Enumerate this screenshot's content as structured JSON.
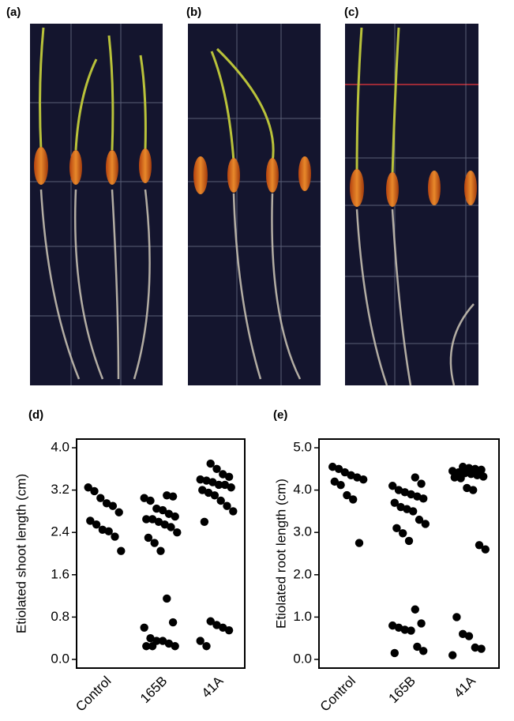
{
  "panels": [
    "(a)",
    "(b)",
    "(c)"
  ],
  "chart_data": [
    {
      "type": "strip",
      "panel_label": "(d)",
      "ylabel": "Etiolated shoot length (cm)",
      "categories": [
        "Control",
        "165B",
        "41A"
      ],
      "color": "#000000",
      "values": [
        [
          3.25,
          3.18,
          3.05,
          2.95,
          2.9,
          2.78,
          2.62,
          2.55,
          2.45,
          2.42,
          2.32,
          2.05
        ],
        [
          3.1,
          3.08,
          3.05,
          3.0,
          2.85,
          2.82,
          2.75,
          2.7,
          2.65,
          2.65,
          2.6,
          2.55,
          2.5,
          2.4,
          2.3,
          2.2,
          2.05,
          1.15,
          0.7,
          0.6,
          0.4,
          0.35,
          0.35,
          0.3,
          0.25,
          0.25,
          0.25
        ],
        [
          3.7,
          3.6,
          3.5,
          3.45,
          3.4,
          3.38,
          3.35,
          3.3,
          3.3,
          3.25,
          3.2,
          3.15,
          3.1,
          3.0,
          2.9,
          2.8,
          2.6,
          0.72,
          0.65,
          0.6,
          0.55,
          0.35,
          0.25
        ]
      ],
      "ylim": [
        0,
        4
      ],
      "yticks": [
        {
          "value": 0,
          "label": "0.0"
        },
        0.8,
        1.6,
        2.4,
        3.2,
        {
          "value": 4,
          "label": "4.0"
        }
      ]
    },
    {
      "type": "strip",
      "panel_label": "(e)",
      "ylabel": "Etiolated root length (cm)",
      "categories": [
        "Control",
        "165B",
        "41A"
      ],
      "color": "#000000",
      "values": [
        [
          4.55,
          4.5,
          4.42,
          4.35,
          4.3,
          4.25,
          4.2,
          4.12,
          3.88,
          3.78,
          2.75
        ],
        [
          4.3,
          4.15,
          4.1,
          4.0,
          3.95,
          3.9,
          3.85,
          3.8,
          3.7,
          3.6,
          3.55,
          3.5,
          3.3,
          3.2,
          3.1,
          2.98,
          2.8,
          1.18,
          0.85,
          0.8,
          0.75,
          0.7,
          0.68,
          0.3,
          0.2,
          0.15
        ],
        [
          4.55,
          4.52,
          4.5,
          4.48,
          4.45,
          4.42,
          4.4,
          4.38,
          4.35,
          4.32,
          4.3,
          4.28,
          4.05,
          4.0,
          2.7,
          2.6,
          1.0,
          0.6,
          0.55,
          0.28,
          0.25,
          0.1
        ]
      ],
      "ylim": [
        0,
        5
      ],
      "yticks": [
        {
          "value": 0,
          "label": "0.0"
        },
        {
          "value": 1,
          "label": "1.0"
        },
        {
          "value": 2,
          "label": "2.0"
        },
        {
          "value": 3,
          "label": "3.0"
        },
        {
          "value": 4,
          "label": "4.0"
        },
        {
          "value": 5,
          "label": "5.0"
        }
      ]
    }
  ]
}
